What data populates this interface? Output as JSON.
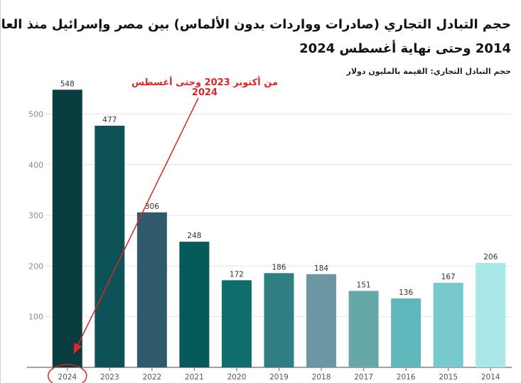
{
  "title_line1": "حجم التبادل التجاري (صادرات وواردات بدون الألماس) بين مصر وإسرائيل منذ العام",
  "title_line2": "2014 وحتى نهاية أغسطس 2024",
  "subtitle": "حجم التبادل التجاري: القيمة بالمليون دولار",
  "annotation": {
    "line1": "من أكتوبر 2023 وحتى أغسطس",
    "line2": "2024",
    "color": "#d62828"
  },
  "chart_data": {
    "type": "bar",
    "categories": [
      "2024",
      "2023",
      "2022",
      "2021",
      "2020",
      "2019",
      "2018",
      "2017",
      "2016",
      "2015",
      "2014"
    ],
    "values": [
      548,
      477,
      306,
      248,
      172,
      186,
      184,
      151,
      136,
      167,
      206
    ],
    "colors": [
      "#0a3d3f",
      "#0d5257",
      "#2e5a6b",
      "#065a5a",
      "#0f6d6e",
      "#2e7f82",
      "#6b97a3",
      "#66a8a8",
      "#5fb7bb",
      "#78c8cf",
      "#a8e8e8"
    ],
    "yticks": [
      100,
      200,
      300,
      400,
      500
    ],
    "ylim": [
      0,
      580
    ],
    "grid": true,
    "highlight_category": "2024"
  }
}
